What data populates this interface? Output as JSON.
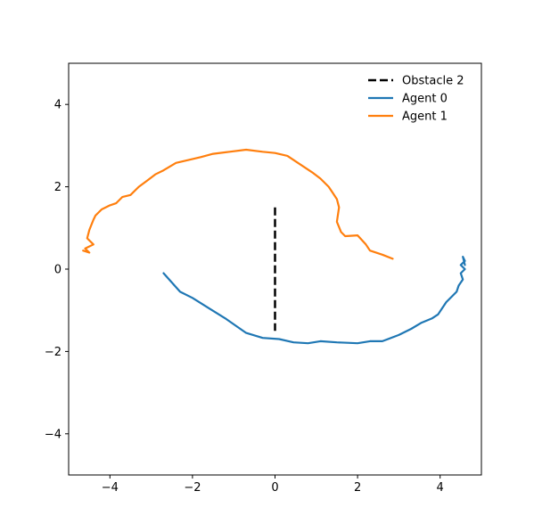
{
  "chart_data": {
    "type": "line",
    "title": "",
    "xlabel": "",
    "ylabel": "",
    "xlim": [
      -5,
      5
    ],
    "ylim": [
      -5,
      5
    ],
    "xticks": [
      -4,
      -2,
      0,
      2,
      4
    ],
    "yticks": [
      -4,
      -2,
      0,
      2,
      4
    ],
    "xtick_labels": [
      "−4",
      "−2",
      "0",
      "2",
      "4"
    ],
    "ytick_labels": [
      "−4",
      "−2",
      "0",
      "2",
      "4"
    ],
    "grid": false,
    "legend_position": "top-right",
    "series": [
      {
        "name": "Obstacle 2",
        "color": "#000000",
        "style": "dashed",
        "x": [
          0,
          0
        ],
        "y": [
          1.5,
          -1.5
        ]
      },
      {
        "name": "Agent 0",
        "color": "#1f77b4",
        "style": "solid",
        "x": [
          -2.7,
          -2.3,
          -2.0,
          -1.6,
          -1.2,
          -0.7,
          -0.3,
          0.1,
          0.45,
          0.8,
          1.1,
          1.5,
          2.0,
          2.3,
          2.6,
          3.0,
          3.3,
          3.55,
          3.8,
          3.95,
          4.05,
          4.15,
          4.3,
          4.4,
          4.45,
          4.55,
          4.5,
          4.6,
          4.5,
          4.6,
          4.55,
          4.6
        ],
        "y": [
          -0.1,
          -0.55,
          -0.7,
          -0.95,
          -1.2,
          -1.55,
          -1.67,
          -1.7,
          -1.78,
          -1.8,
          -1.75,
          -1.78,
          -1.8,
          -1.75,
          -1.75,
          -1.6,
          -1.45,
          -1.3,
          -1.2,
          -1.1,
          -0.95,
          -0.8,
          -0.65,
          -0.55,
          -0.4,
          -0.25,
          -0.1,
          0.0,
          0.1,
          0.2,
          0.3,
          0.1
        ]
      },
      {
        "name": "Agent 1",
        "color": "#ff7f0e",
        "style": "solid",
        "x": [
          2.85,
          2.6,
          2.3,
          2.2,
          2.0,
          1.7,
          1.6,
          1.5,
          1.55,
          1.5,
          1.4,
          1.3,
          1.1,
          0.9,
          0.6,
          0.3,
          0.0,
          -0.3,
          -0.7,
          -1.1,
          -1.5,
          -1.8,
          -2.1,
          -2.4,
          -2.7,
          -2.9,
          -3.1,
          -3.3,
          -3.5,
          -3.7,
          -3.85,
          -4.0,
          -4.2,
          -4.35,
          -4.4,
          -4.5,
          -4.55,
          -4.4,
          -4.6,
          -4.5,
          -4.65
        ],
        "y": [
          0.25,
          0.35,
          0.45,
          0.6,
          0.82,
          0.8,
          0.9,
          1.15,
          1.5,
          1.7,
          1.85,
          2.0,
          2.2,
          2.35,
          2.55,
          2.75,
          2.82,
          2.85,
          2.9,
          2.85,
          2.8,
          2.72,
          2.65,
          2.58,
          2.4,
          2.3,
          2.15,
          2.0,
          1.8,
          1.75,
          1.6,
          1.55,
          1.45,
          1.3,
          1.2,
          0.95,
          0.75,
          0.6,
          0.5,
          0.4,
          0.45
        ]
      }
    ]
  }
}
